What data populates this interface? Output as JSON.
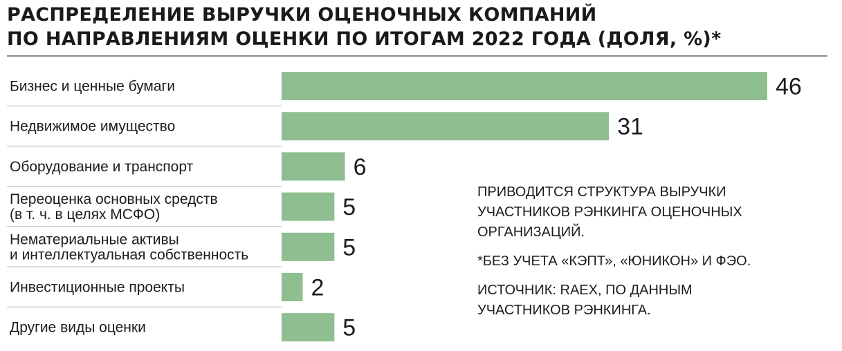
{
  "title": {
    "line1": "РАСПРЕДЕЛЕНИЕ ВЫРУЧКИ ОЦЕНОЧНЫХ КОМПАНИЙ",
    "line2": "ПО НАПРАВЛЕНИЯМ ОЦЕНКИ ПО ИТОГАМ 2022 ГОДА (ДОЛЯ, %)*"
  },
  "notes": {
    "description": [
      "ПРИВОДИТСЯ СТРУКТУРА ВЫРУЧКИ",
      "УЧАСТНИКОВ РЭНКИНГА ОЦЕНОЧНЫХ",
      "ОРГАНИЗАЦИЙ."
    ],
    "footnote": [
      "*БЕЗ УЧЕТА «КЭПТ», «ЮНИКОН» И ФЭО."
    ],
    "source": [
      "ИСТОЧНИК: RAEX, ПО ДАННЫМ",
      "УЧАСТНИКОВ РЭНКИНГА."
    ]
  },
  "colors": {
    "bar": "#8fbf91",
    "separator": "#b9b9b9",
    "title_rule": "#8a8a8a",
    "text": "#1c1c1c"
  },
  "chart_data": {
    "type": "bar",
    "orientation": "horizontal",
    "title": "РАСПРЕДЕЛЕНИЕ ВЫРУЧКИ ОЦЕНОЧНЫХ КОМПАНИЙ ПО НАПРАВЛЕНИЯМ ОЦЕНКИ ПО ИТОГАМ 2022 ГОДА (ДОЛЯ, %)*",
    "unit": "%",
    "categories": [
      [
        "Бизнес и ценные бумаги"
      ],
      [
        "Недвижимое имущество"
      ],
      [
        "Оборудование и транспорт"
      ],
      [
        "Переоценка основных средств",
        "(в т. ч. в целях МСФО)"
      ],
      [
        "Нематериальные активы",
        "и интеллектуальная собственность"
      ],
      [
        "Инвестиционные проекты"
      ],
      [
        "Другие виды оценки"
      ]
    ],
    "values": [
      46,
      31,
      6,
      5,
      5,
      2,
      5
    ],
    "value_labels": [
      "46",
      "31",
      "6",
      "5",
      "5",
      "2",
      "5"
    ],
    "xlim": [
      0,
      46
    ],
    "grid": false,
    "legend": "none"
  }
}
